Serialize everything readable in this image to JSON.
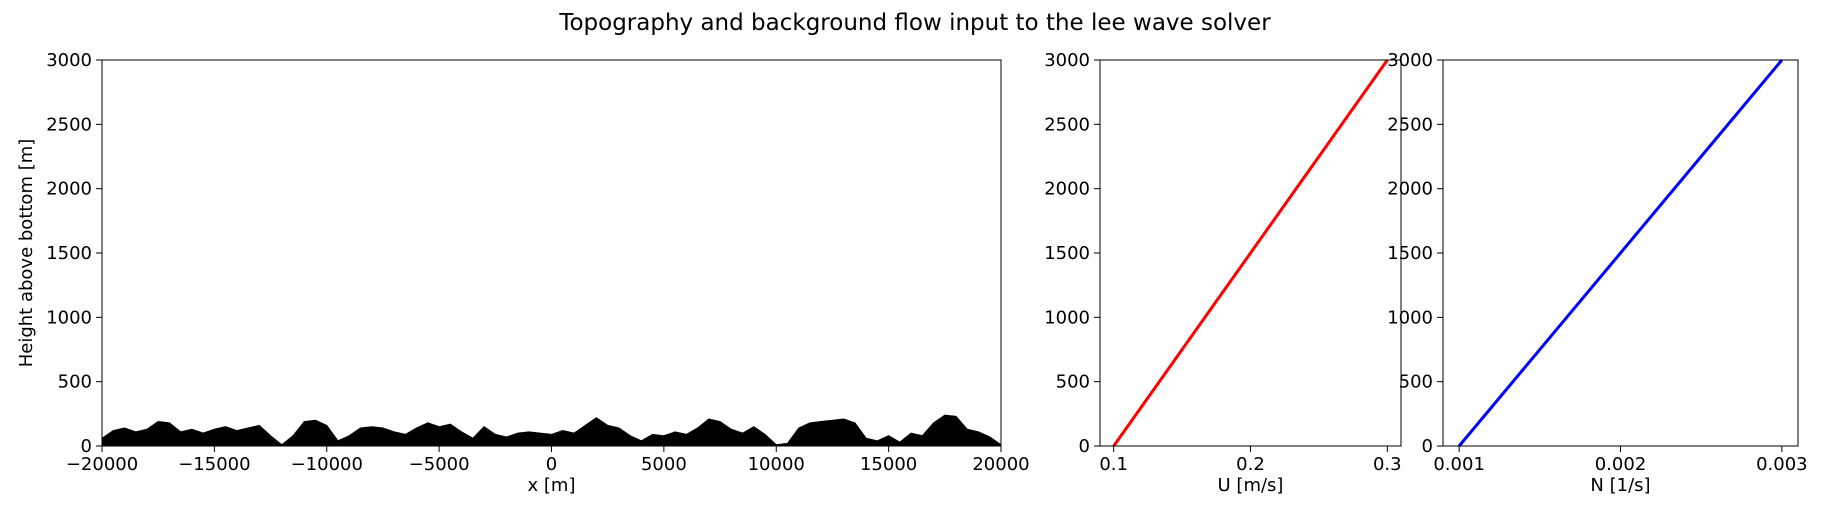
{
  "figure": {
    "title": "Topography and background flow input to the lee wave solver"
  },
  "chart_data": [
    {
      "type": "area",
      "name": "topography",
      "xlabel": "x [m]",
      "ylabel": "Height above bottom [m]",
      "xlim": [
        -20000,
        20000
      ],
      "ylim": [
        0,
        3000
      ],
      "xticks": [
        -20000,
        -15000,
        -10000,
        -5000,
        0,
        5000,
        10000,
        15000,
        20000
      ],
      "xtick_labels": [
        "−20000",
        "−15000",
        "−10000",
        "−5000",
        "0",
        "5000",
        "10000",
        "15000",
        "20000"
      ],
      "yticks": [
        0,
        500,
        1000,
        1500,
        2000,
        2500,
        3000
      ],
      "ytick_labels": [
        "0",
        "500",
        "1000",
        "1500",
        "2000",
        "2500",
        "3000"
      ],
      "fill_color": "#000000",
      "x": [
        -20000,
        -19500,
        -19000,
        -18500,
        -18000,
        -17500,
        -17000,
        -16500,
        -16000,
        -15500,
        -15000,
        -14500,
        -14000,
        -13500,
        -13000,
        -12500,
        -12000,
        -11500,
        -11000,
        -10500,
        -10000,
        -9500,
        -9000,
        -8500,
        -8000,
        -7500,
        -7000,
        -6500,
        -6000,
        -5500,
        -5000,
        -4500,
        -4000,
        -3500,
        -3000,
        -2500,
        -2000,
        -1500,
        -1000,
        -500,
        0,
        500,
        1000,
        1500,
        2000,
        2500,
        3000,
        3500,
        4000,
        4500,
        5000,
        5500,
        6000,
        6500,
        7000,
        7500,
        8000,
        8500,
        9000,
        9500,
        10000,
        10500,
        11000,
        11500,
        12000,
        12500,
        13000,
        13500,
        14000,
        14500,
        15000,
        15500,
        16000,
        16500,
        17000,
        17500,
        18000,
        18500,
        19000,
        19500,
        20000
      ],
      "y": [
        60,
        120,
        140,
        110,
        130,
        190,
        180,
        110,
        130,
        100,
        130,
        150,
        120,
        140,
        160,
        80,
        10,
        80,
        190,
        200,
        160,
        40,
        80,
        140,
        150,
        140,
        110,
        90,
        140,
        180,
        150,
        170,
        110,
        60,
        150,
        90,
        70,
        100,
        110,
        100,
        90,
        120,
        100,
        160,
        220,
        160,
        140,
        80,
        40,
        90,
        80,
        110,
        90,
        140,
        210,
        190,
        130,
        100,
        150,
        90,
        10,
        20,
        140,
        180,
        190,
        200,
        210,
        180,
        60,
        40,
        80,
        30,
        100,
        80,
        180,
        240,
        230,
        130,
        110,
        70,
        10
      ]
    },
    {
      "type": "line",
      "name": "U profile",
      "xlabel": "U [m/s]",
      "ylabel": "",
      "xlim": [
        0.09,
        0.31
      ],
      "ylim": [
        0,
        3000
      ],
      "xticks": [
        0.1,
        0.2,
        0.3
      ],
      "xtick_labels": [
        "0.1",
        "0.2",
        "0.3"
      ],
      "yticks": [
        0,
        500,
        1000,
        1500,
        2000,
        2500,
        3000
      ],
      "ytick_labels": [
        "0",
        "500",
        "1000",
        "1500",
        "2000",
        "2500",
        "3000"
      ],
      "line_color": "#ff0000",
      "x": [
        0.1,
        0.3
      ],
      "y": [
        0,
        3000
      ]
    },
    {
      "type": "line",
      "name": "N profile",
      "xlabel": "N [1/s]",
      "ylabel": "",
      "xlim": [
        0.0009,
        0.0031
      ],
      "ylim": [
        0,
        3000
      ],
      "xticks": [
        0.001,
        0.002,
        0.003
      ],
      "xtick_labels": [
        "0.001",
        "0.002",
        "0.003"
      ],
      "yticks": [
        0,
        500,
        1000,
        1500,
        2000,
        2500,
        3000
      ],
      "ytick_labels": [
        "0",
        "500",
        "1000",
        "1500",
        "2000",
        "2500",
        "3000"
      ],
      "line_color": "#0000ff",
      "x": [
        0.001,
        0.003
      ],
      "y": [
        0,
        3000
      ]
    }
  ]
}
